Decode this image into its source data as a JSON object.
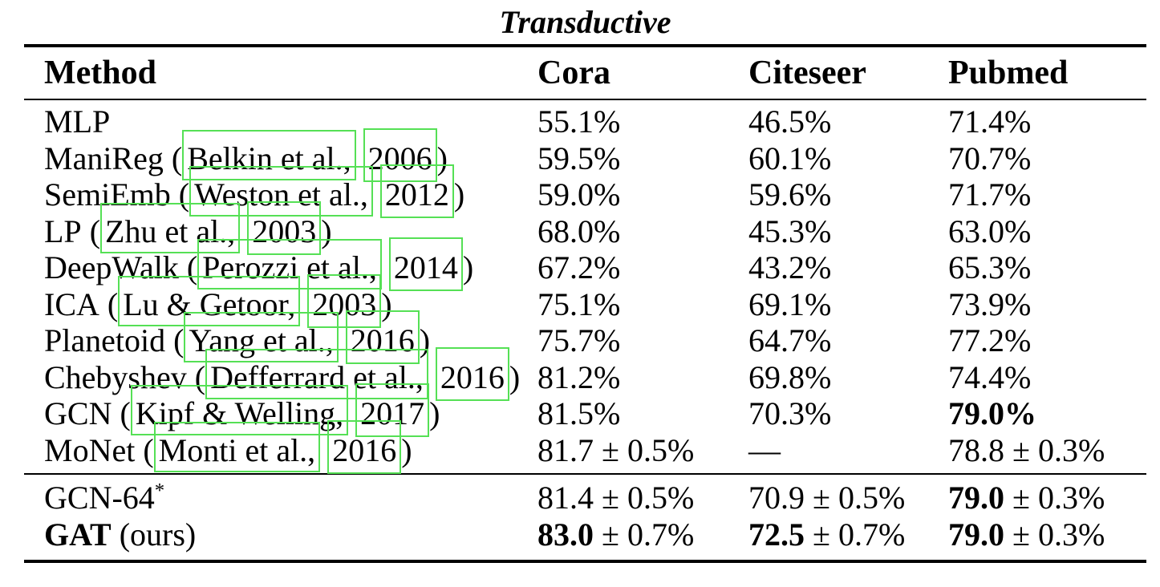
{
  "title": "Transductive",
  "colors": {
    "link_box_green": "#55e055",
    "text": "#000000",
    "background": "#ffffff",
    "rule": "#000000"
  },
  "header": {
    "method": "Method",
    "cora": "Cora",
    "citeseer": "Citeseer",
    "pubmed": "Pubmed"
  },
  "body_rows": [
    {
      "method": {
        "name": "MLP"
      },
      "cora": {
        "r": "55.1%"
      },
      "citeseer": {
        "r": "46.5%"
      },
      "pubmed": {
        "r": "71.4%"
      }
    },
    {
      "method": {
        "name": "ManiReg",
        "open": " (",
        "cite_author": "Belkin et al.,",
        "space": " ",
        "cite_year": "2006",
        "close": ")"
      },
      "cora": {
        "r": "59.5%"
      },
      "citeseer": {
        "r": "60.1%"
      },
      "pubmed": {
        "r": "70.7%"
      }
    },
    {
      "method": {
        "name": "SemiEmb",
        "open": " (",
        "cite_author": "Weston et al.,",
        "space": " ",
        "cite_year": "2012",
        "close": ")"
      },
      "cora": {
        "r": "59.0%"
      },
      "citeseer": {
        "r": "59.6%"
      },
      "pubmed": {
        "r": "71.7%"
      }
    },
    {
      "method": {
        "name": "LP",
        "open": " (",
        "cite_author": "Zhu et al.,",
        "space": " ",
        "cite_year": "2003",
        "close": ")"
      },
      "cora": {
        "r": "68.0%"
      },
      "citeseer": {
        "r": "45.3%"
      },
      "pubmed": {
        "r": "63.0%"
      }
    },
    {
      "method": {
        "name": "DeepWalk",
        "open": " (",
        "cite_author": "Perozzi et al.,",
        "space": " ",
        "cite_year": "2014",
        "close": ")"
      },
      "cora": {
        "r": "67.2%"
      },
      "citeseer": {
        "r": "43.2%"
      },
      "pubmed": {
        "r": "65.3%"
      }
    },
    {
      "method": {
        "name": "ICA",
        "open": " (",
        "cite_author": "Lu & Getoor,",
        "space": " ",
        "cite_year": "2003",
        "close": ")"
      },
      "cora": {
        "r": "75.1%"
      },
      "citeseer": {
        "r": "69.1%"
      },
      "pubmed": {
        "r": "73.9%"
      }
    },
    {
      "method": {
        "name": "Planetoid",
        "open": " (",
        "cite_author": "Yang et al.,",
        "space": " ",
        "cite_year": "2016",
        "close": ")"
      },
      "cora": {
        "r": "75.7%"
      },
      "citeseer": {
        "r": "64.7%"
      },
      "pubmed": {
        "r": "77.2%"
      }
    },
    {
      "method": {
        "name": "Chebyshev",
        "open": " (",
        "cite_author": "Defferrard et al.,",
        "space": " ",
        "cite_year": "2016",
        "close": ")"
      },
      "cora": {
        "r": "81.2%"
      },
      "citeseer": {
        "r": "69.8%"
      },
      "pubmed": {
        "r": "74.4%"
      }
    },
    {
      "method": {
        "name": "GCN",
        "open": " (",
        "cite_author": "Kipf & Welling,",
        "space": " ",
        "cite_year": "2017",
        "close": ")"
      },
      "cora": {
        "r": "81.5%"
      },
      "citeseer": {
        "r": "70.3%"
      },
      "pubmed": {
        "b": "79.0%"
      }
    },
    {
      "method": {
        "name": "MoNet",
        "open": " (",
        "cite_author": "Monti et al.,",
        "space": " ",
        "cite_year": "2016",
        "close": ")"
      },
      "cora": {
        "r": "81.7 ± 0.5%"
      },
      "citeseer": {
        "r": "—"
      },
      "pubmed": {
        "r": "78.8 ± 0.3%"
      }
    }
  ],
  "bottom_rows": [
    {
      "method": {
        "name": "GCN-64",
        "sup": "*"
      },
      "cora": {
        "r": "81.4 ± 0.5%"
      },
      "citeseer": {
        "r": "70.9 ± 0.5%"
      },
      "pubmed": {
        "b": "79.0",
        "r": " ± 0.3%"
      }
    },
    {
      "method": {
        "name": "GAT",
        "bold": true,
        "suffix": " (ours)"
      },
      "cora": {
        "b": "83.0",
        "r": " ± 0.7%"
      },
      "citeseer": {
        "b": "72.5",
        "r": " ± 0.7%"
      },
      "pubmed": {
        "b": "79.0",
        "r": " ± 0.3%"
      }
    }
  ]
}
